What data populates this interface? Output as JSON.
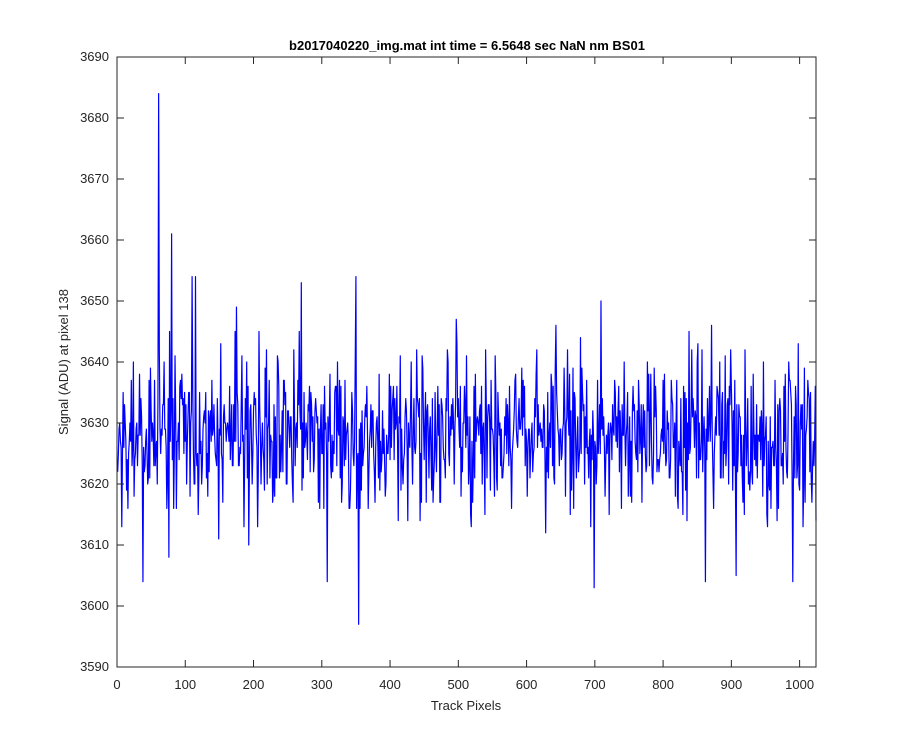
{
  "chart_data": {
    "type": "line",
    "title": "b2017040220_img.mat int time = 6.5648 sec  NaN nm BS01",
    "xlabel": "Track Pixels",
    "ylabel": "Signal (ADU) at pixel 138",
    "xlim": [
      0,
      1024
    ],
    "ylim": [
      3590,
      3690
    ],
    "xticks": [
      0,
      100,
      200,
      300,
      400,
      500,
      600,
      700,
      800,
      900,
      1000
    ],
    "yticks": [
      3590,
      3600,
      3610,
      3620,
      3630,
      3640,
      3650,
      3660,
      3670,
      3680,
      3690
    ],
    "grid": false,
    "legend": "none",
    "line_color": "#0000ff",
    "series": [
      {
        "name": "",
        "x_start": 1,
        "x_step": 1,
        "n_points": 1024,
        "baseline_mean": 3628,
        "noise_std": 6.5,
        "notable_points": [
          {
            "x": 38,
            "y": 3604
          },
          {
            "x": 61,
            "y": 3684
          },
          {
            "x": 80,
            "y": 3661
          },
          {
            "x": 76,
            "y": 3608
          },
          {
            "x": 110,
            "y": 3654
          },
          {
            "x": 115,
            "y": 3654
          },
          {
            "x": 270,
            "y": 3653
          },
          {
            "x": 308,
            "y": 3604
          },
          {
            "x": 350,
            "y": 3654
          },
          {
            "x": 354,
            "y": 3597
          },
          {
            "x": 709,
            "y": 3650
          },
          {
            "x": 699,
            "y": 3603
          },
          {
            "x": 862,
            "y": 3604
          },
          {
            "x": 907,
            "y": 3605
          },
          {
            "x": 990,
            "y": 3604
          },
          {
            "x": 998,
            "y": 3643
          },
          {
            "x": 1024,
            "y": 3614
          }
        ]
      }
    ]
  }
}
